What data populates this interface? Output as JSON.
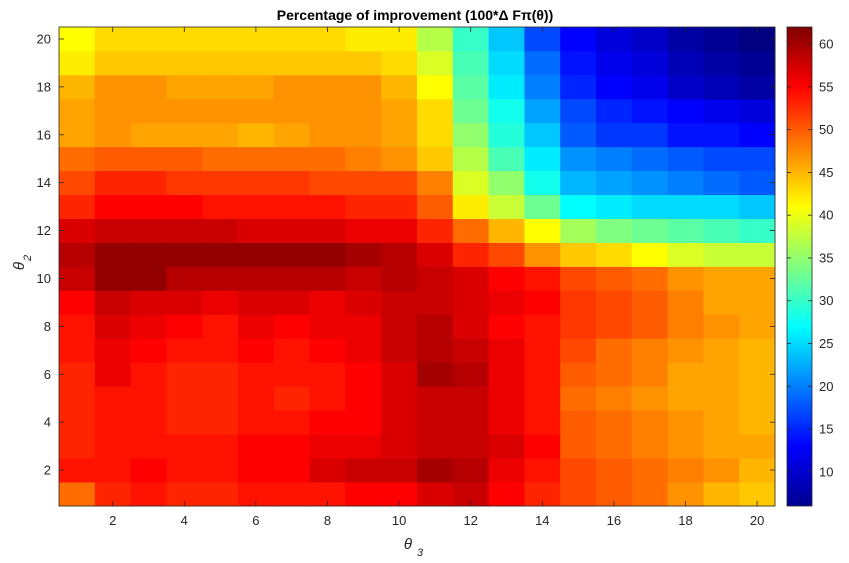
{
  "chart_data": {
    "type": "heatmap",
    "title": "Percentage of improvement (100*Δ Fπ(θ))",
    "xlabel": "θ",
    "xlabel_subscript": "3",
    "ylabel": "θ",
    "ylabel_subscript": "2",
    "x": [
      1,
      2,
      3,
      4,
      5,
      6,
      7,
      8,
      9,
      10,
      11,
      12,
      13,
      14,
      15,
      16,
      17,
      18,
      19,
      20
    ],
    "y": [
      1,
      2,
      3,
      4,
      5,
      6,
      7,
      8,
      9,
      10,
      11,
      12,
      13,
      14,
      15,
      16,
      17,
      18,
      19,
      20
    ],
    "x_ticks": [
      2,
      4,
      6,
      8,
      10,
      12,
      14,
      16,
      18,
      20
    ],
    "y_ticks": [
      2,
      4,
      6,
      8,
      10,
      12,
      14,
      16,
      18,
      20
    ],
    "xlim": [
      0.5,
      20.5
    ],
    "ylim": [
      0.5,
      20.5
    ],
    "colormap": "jet",
    "clim": [
      6,
      62
    ],
    "colorbar_ticks": [
      10,
      15,
      20,
      25,
      30,
      35,
      40,
      45,
      50,
      55,
      60
    ],
    "grid": false,
    "z": [
      [
        49,
        53,
        54,
        53,
        53,
        54,
        54,
        54,
        55,
        55,
        57,
        58,
        55,
        53,
        51,
        50,
        49,
        47,
        45,
        44
      ],
      [
        54,
        54,
        55,
        54,
        54,
        55,
        55,
        57,
        58,
        58,
        60,
        59,
        56,
        54,
        51,
        50,
        49,
        48,
        47,
        45
      ],
      [
        53,
        54,
        54,
        54,
        54,
        55,
        55,
        56,
        56,
        57,
        58,
        58,
        57,
        55,
        50,
        49,
        48,
        47,
        46,
        46
      ],
      [
        53,
        54,
        54,
        53,
        53,
        54,
        54,
        55,
        55,
        57,
        58,
        58,
        56,
        54,
        50,
        49,
        48,
        47,
        46,
        45
      ],
      [
        53,
        54,
        54,
        53,
        53,
        54,
        53,
        54,
        55,
        57,
        58,
        58,
        56,
        54,
        49,
        48,
        47,
        46,
        46,
        45
      ],
      [
        53,
        56,
        54,
        53,
        53,
        54,
        54,
        54,
        55,
        57,
        60,
        59,
        56,
        54,
        50,
        49,
        48,
        46,
        46,
        45
      ],
      [
        54,
        56,
        55,
        54,
        54,
        55,
        54,
        55,
        56,
        58,
        59,
        58,
        56,
        54,
        51,
        49,
        48,
        47,
        46,
        45
      ],
      [
        54,
        57,
        56,
        55,
        54,
        56,
        55,
        56,
        56,
        58,
        59,
        57,
        55,
        54,
        52,
        51,
        50,
        48,
        47,
        46
      ],
      [
        55,
        58,
        57,
        57,
        56,
        57,
        57,
        56,
        57,
        58,
        58,
        57,
        56,
        55,
        52,
        51,
        50,
        48,
        46,
        46
      ],
      [
        58,
        61,
        61,
        59,
        59,
        59,
        59,
        59,
        58,
        59,
        58,
        57,
        55,
        54,
        51,
        50,
        49,
        47,
        46,
        46
      ],
      [
        59,
        61,
        61,
        61,
        61,
        61,
        61,
        61,
        60,
        59,
        57,
        53,
        51,
        47,
        44,
        43,
        41,
        39,
        38,
        38
      ],
      [
        57,
        58,
        58,
        58,
        58,
        57,
        57,
        57,
        56,
        56,
        53,
        49,
        45,
        41,
        36,
        34,
        33,
        32,
        31,
        30
      ],
      [
        53,
        55,
        55,
        55,
        54,
        54,
        54,
        54,
        53,
        53,
        50,
        42,
        38,
        33,
        27,
        26,
        25,
        25,
        25,
        24
      ],
      [
        51,
        53,
        53,
        52,
        52,
        52,
        52,
        51,
        51,
        51,
        48,
        39,
        35,
        28,
        23,
        22,
        21,
        20,
        19,
        18
      ],
      [
        49,
        50,
        50,
        50,
        49,
        49,
        49,
        49,
        48,
        47,
        44,
        37,
        31,
        26,
        21,
        20,
        19,
        18,
        17,
        17
      ],
      [
        46,
        47,
        46,
        46,
        46,
        45,
        46,
        47,
        47,
        46,
        43,
        35,
        29,
        24,
        18,
        16,
        16,
        14,
        14,
        13
      ],
      [
        46,
        47,
        47,
        47,
        47,
        47,
        47,
        47,
        47,
        46,
        43,
        33,
        28,
        22,
        17,
        15,
        14,
        13,
        12,
        11
      ],
      [
        45,
        47,
        47,
        46,
        46,
        46,
        47,
        47,
        47,
        45,
        41,
        32,
        26,
        20,
        15,
        13,
        12,
        10,
        9,
        8
      ],
      [
        42,
        44,
        44,
        44,
        44,
        44,
        44,
        44,
        44,
        43,
        39,
        31,
        25,
        19,
        14,
        12,
        11,
        9,
        8,
        7
      ],
      [
        41,
        43,
        43,
        43,
        43,
        43,
        43,
        43,
        42,
        42,
        37,
        30,
        24,
        17,
        13,
        11,
        10,
        8,
        7,
        6
      ]
    ]
  }
}
